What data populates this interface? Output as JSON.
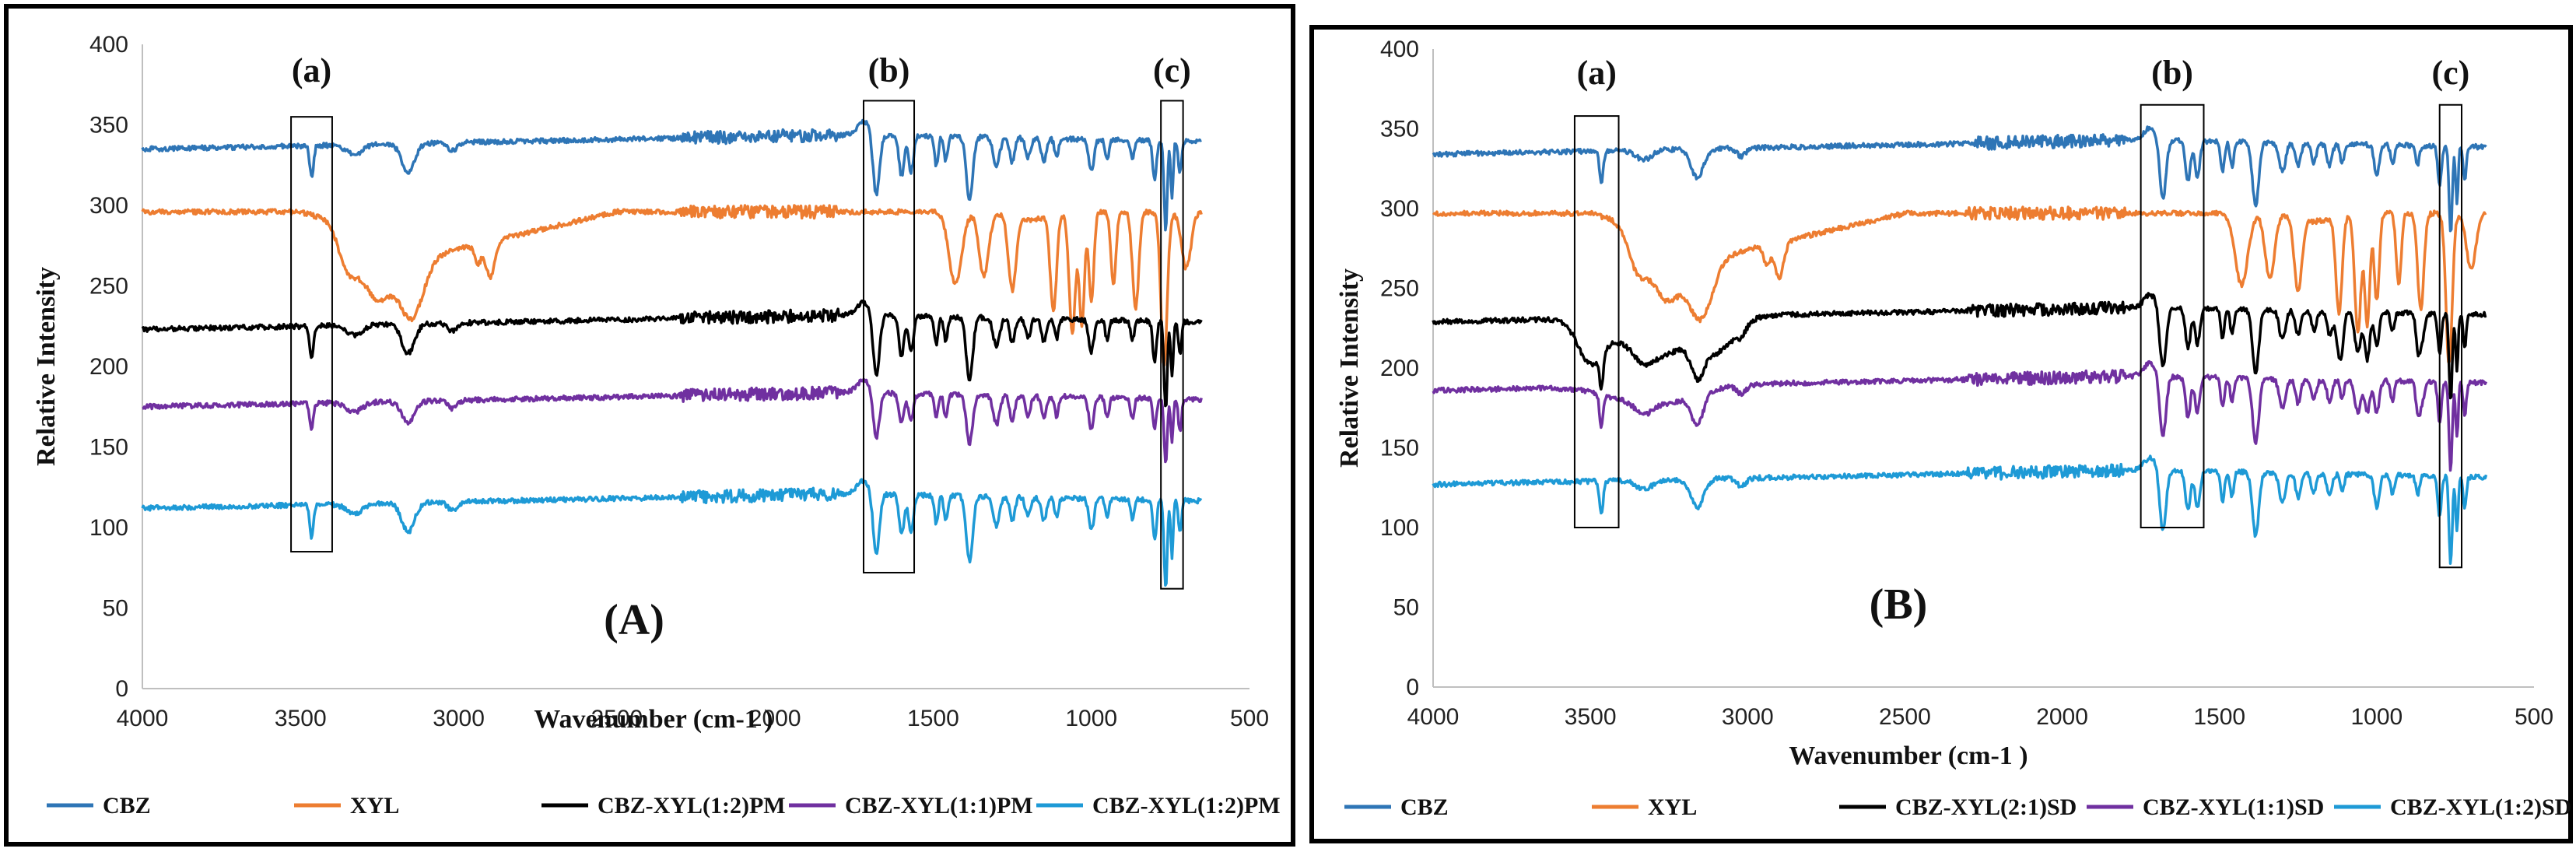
{
  "chart_data": [
    {
      "type": "line",
      "panel_label": "(A)",
      "xlabel": "Wavenumber (cm-1 )",
      "ylabel": "Relative Intensity",
      "xlim": [
        4000,
        500
      ],
      "ylim": [
        0,
        400
      ],
      "x_ticks": [
        "4000",
        "3500",
        "3000",
        "2500",
        "2000",
        "1500",
        "1000",
        "500"
      ],
      "y_ticks": [
        "0",
        "50",
        "100",
        "150",
        "200",
        "250",
        "300",
        "350",
        "400"
      ],
      "grid": false,
      "legend_position": "bottom",
      "regions": [
        {
          "label": "(a)",
          "x_range": [
            3530,
            3400
          ],
          "y_range": [
            85,
            355
          ]
        },
        {
          "label": "(b)",
          "x_range": [
            1720,
            1560
          ],
          "y_range": [
            72,
            365
          ]
        },
        {
          "label": "(c)",
          "x_range": [
            780,
            710
          ],
          "y_range": [
            62,
            365
          ]
        }
      ],
      "series": [
        {
          "name": "CBZ",
          "color": "#2e75b6",
          "baseline": 342,
          "profile": "cbz"
        },
        {
          "name": "XYL",
          "color": "#ed7d31",
          "baseline": 296,
          "profile": "xyl"
        },
        {
          "name": "CBZ-XYL(1:2)PM",
          "color": "#000000",
          "baseline": 230,
          "profile": "mix"
        },
        {
          "name": "CBZ-XYL(1:1)PM",
          "color": "#7030a0",
          "baseline": 182,
          "profile": "mix_small"
        },
        {
          "name": "CBZ-XYL(1:2)PM",
          "color": "#1e9ad6",
          "baseline": 119,
          "profile": "mix"
        }
      ]
    },
    {
      "type": "line",
      "panel_label": "(B)",
      "xlabel": "Wavenumber (cm-1 )",
      "ylabel": "Relative Intensity",
      "xlim": [
        4000,
        500
      ],
      "ylim": [
        0,
        400
      ],
      "x_ticks": [
        "4000",
        "3500",
        "3000",
        "2500",
        "2000",
        "1500",
        "1000",
        "500"
      ],
      "y_ticks": [
        "0",
        "50",
        "100",
        "150",
        "200",
        "250",
        "300",
        "350",
        "400"
      ],
      "grid": false,
      "legend_position": "bottom",
      "regions": [
        {
          "label": "(a)",
          "x_range": [
            3550,
            3410
          ],
          "y_range": [
            100,
            358
          ]
        },
        {
          "label": "(b)",
          "x_range": [
            1750,
            1550
          ],
          "y_range": [
            100,
            365
          ]
        },
        {
          "label": "(c)",
          "x_range": [
            800,
            730
          ],
          "y_range": [
            75,
            365
          ]
        }
      ],
      "series": [
        {
          "name": "CBZ",
          "color": "#2e75b6",
          "baseline": 341,
          "profile": "cbz"
        },
        {
          "name": "XYL",
          "color": "#ed7d31",
          "baseline": 297,
          "profile": "xyl"
        },
        {
          "name": "CBZ-XYL(2:1)SD",
          "color": "#000000",
          "baseline": 236,
          "profile": "sd_black"
        },
        {
          "name": "CBZ-XYL(1:1)SD",
          "color": "#7030a0",
          "baseline": 193,
          "profile": "sd_purple"
        },
        {
          "name": "CBZ-XYL(1:2)SD",
          "color": "#1e9ad6",
          "baseline": 134,
          "profile": "mix"
        }
      ]
    }
  ]
}
